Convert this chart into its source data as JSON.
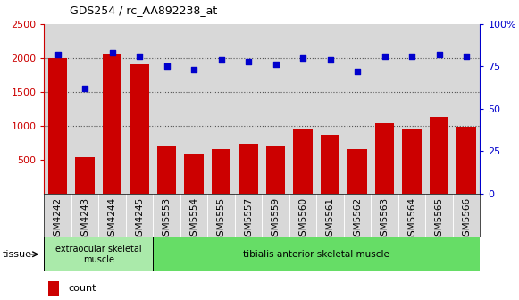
{
  "title": "GDS254 / rc_AA892238_at",
  "categories": [
    "GSM4242",
    "GSM4243",
    "GSM4244",
    "GSM4245",
    "GSM5553",
    "GSM5554",
    "GSM5555",
    "GSM5557",
    "GSM5559",
    "GSM5560",
    "GSM5561",
    "GSM5562",
    "GSM5563",
    "GSM5564",
    "GSM5565",
    "GSM5566"
  ],
  "counts": [
    2000,
    540,
    2060,
    1900,
    690,
    590,
    650,
    730,
    700,
    960,
    860,
    650,
    1040,
    960,
    1130,
    980
  ],
  "percentiles": [
    82,
    62,
    83,
    81,
    75,
    73,
    79,
    78,
    76,
    80,
    79,
    72,
    81,
    81,
    82,
    81
  ],
  "bar_color": "#cc0000",
  "dot_color": "#0000cc",
  "ylim_left": [
    0,
    2500
  ],
  "ylim_right": [
    0,
    100
  ],
  "yticks_left": [
    500,
    1000,
    1500,
    2000,
    2500
  ],
  "yticks_right": [
    0,
    25,
    50,
    75,
    100
  ],
  "tissue_labels": [
    "extraocular skeletal\nmuscle",
    "tibialis anterior skeletal muscle"
  ],
  "tissue_group1_count": 4,
  "tissue_color1": "#aaeaaa",
  "tissue_color2": "#66dd66",
  "background_color": "#ffffff",
  "plot_bg_color": "#d8d8d8",
  "dotted_line_color": "#555555",
  "left_axis_color": "#cc0000",
  "right_axis_color": "#0000cc"
}
